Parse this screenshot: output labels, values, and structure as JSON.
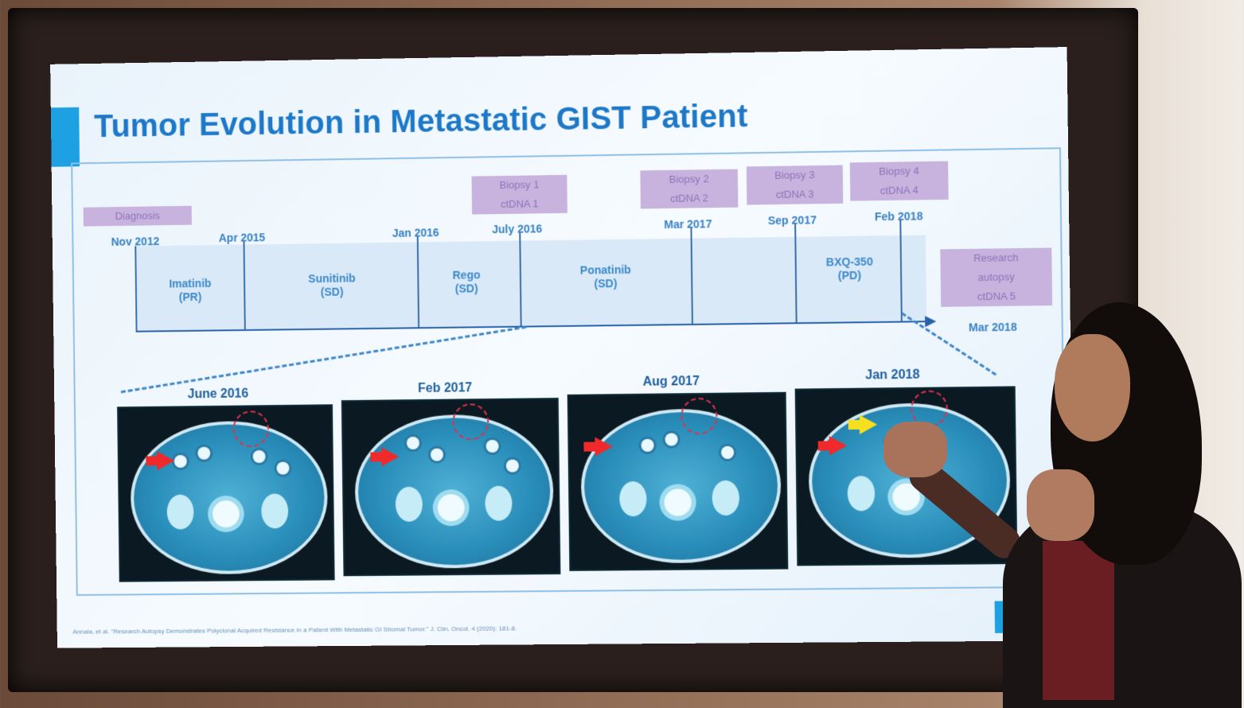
{
  "slide": {
    "title": "Tumor Evolution in Metastatic GIST Patient",
    "citation": "Annala, et al. \"Research Autopsy Demonstrates Polyclonal Acquired Resistance in a Patient With Metastatic GI Stromal Tumor.\" J. Clin. Oncol. 4 (2020): 181-8."
  },
  "timeline": {
    "event_labels": [
      {
        "id": "diagnosis",
        "lines": [
          "Diagnosis"
        ]
      },
      {
        "id": "biopsy1",
        "lines": [
          "Biopsy 1",
          "ctDNA 1"
        ]
      },
      {
        "id": "biopsy2",
        "lines": [
          "Biopsy 2",
          "ctDNA 2"
        ]
      },
      {
        "id": "biopsy3",
        "lines": [
          "Biopsy 3",
          "ctDNA 3"
        ]
      },
      {
        "id": "biopsy4",
        "lines": [
          "Biopsy 4",
          "ctDNA 4"
        ]
      },
      {
        "id": "autopsy",
        "lines": [
          "Research",
          "autopsy",
          "ctDNA 5"
        ]
      }
    ],
    "dates": [
      "Nov 2012",
      "Apr 2015",
      "Jan 2016",
      "July 2016",
      "Mar 2017",
      "Sep 2017",
      "Feb 2018",
      "Mar 2018"
    ],
    "therapies": [
      {
        "name": "Imatinib",
        "response": "(PR)"
      },
      {
        "name": "Sunitinib",
        "response": "(SD)"
      },
      {
        "name": "Rego",
        "response": "(SD)"
      },
      {
        "name": "Ponatinib",
        "response": "(SD)"
      },
      {
        "name": "BXQ-350",
        "response": "(PD)"
      }
    ]
  },
  "scans": [
    {
      "date": "June 2016"
    },
    {
      "date": "Feb 2017"
    },
    {
      "date": "Aug 2017"
    },
    {
      "date": "Jan 2018"
    }
  ],
  "colors": {
    "title_blue": "#1e78c8",
    "label_purple": "#c7b3de",
    "axis_blue": "#2a62aa",
    "accent_blue": "#1da1e2",
    "arrow_red": "#f02a2a",
    "arrow_yellow": "#f5df1e"
  }
}
